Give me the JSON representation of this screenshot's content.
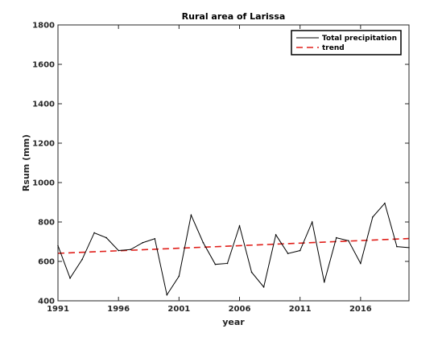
{
  "chart_data": {
    "type": "line",
    "title": "Rural area of Larissa",
    "xlabel": "year",
    "ylabel": "Rsum (mm)",
    "xlim": [
      1991,
      2020
    ],
    "ylim": [
      400,
      1800
    ],
    "xticks": [
      1991,
      1996,
      2001,
      2006,
      2011,
      2016
    ],
    "yticks": [
      400,
      600,
      800,
      1000,
      1200,
      1400,
      1600,
      1800
    ],
    "grid": false,
    "legend_position": "top-right",
    "series": [
      {
        "name": "Total precipitation",
        "color": "#000000",
        "style": "solid",
        "x": [
          1991,
          1992,
          1993,
          1994,
          1995,
          1996,
          1997,
          1998,
          1999,
          2000,
          2001,
          2002,
          2003,
          2004,
          2005,
          2006,
          2007,
          2008,
          2009,
          2010,
          2011,
          2012,
          2013,
          2014,
          2015,
          2016,
          2017,
          2018,
          2019,
          2020
        ],
        "values": [
          680,
          515,
          610,
          745,
          720,
          655,
          660,
          695,
          715,
          430,
          525,
          835,
          695,
          585,
          590,
          780,
          545,
          470,
          735,
          640,
          655,
          800,
          495,
          720,
          705,
          590,
          825,
          895,
          675,
          670
        ]
      },
      {
        "name": "trend",
        "color": "#e0201b",
        "style": "dashed",
        "x": [
          1991,
          2020
        ],
        "values": [
          641,
          716
        ]
      }
    ]
  }
}
